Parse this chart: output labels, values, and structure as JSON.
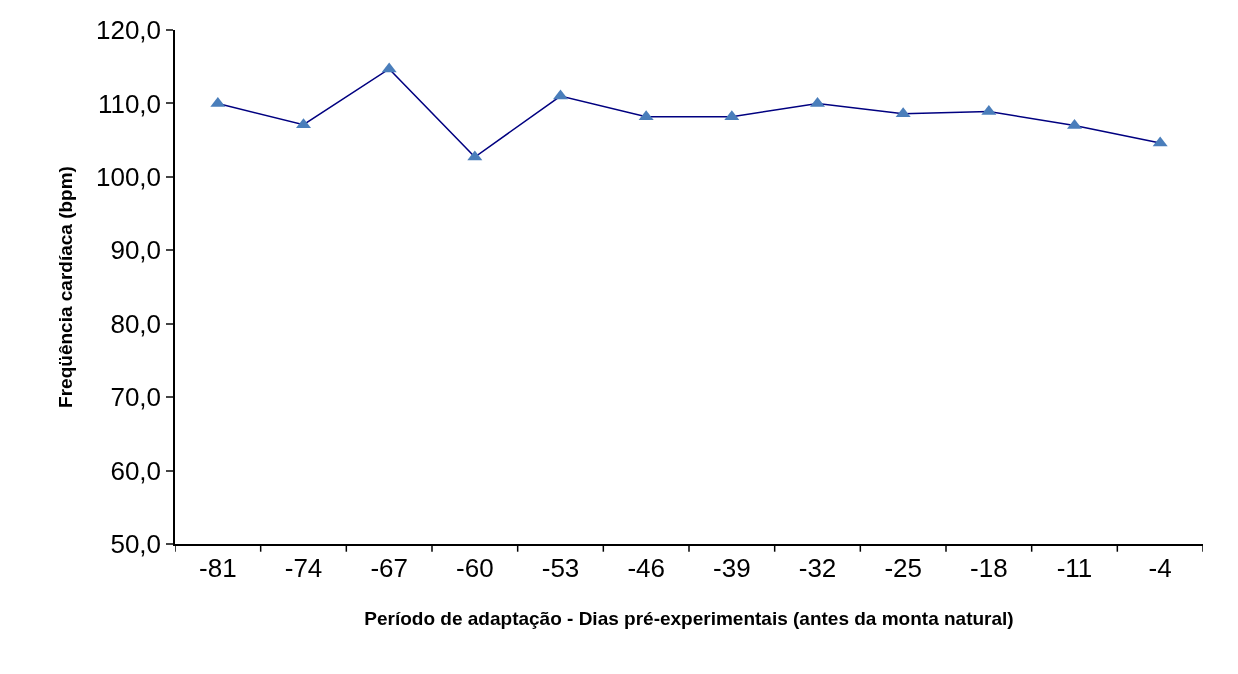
{
  "chart_data": {
    "type": "line",
    "xlabel": "Período de adaptação - Dias pré-experimentais (antes da monta natural)",
    "ylabel": "Freqüência cardíaca (bpm)",
    "categories": [
      "-81",
      "-74",
      "-67",
      "-60",
      "-53",
      "-46",
      "-39",
      "-32",
      "-25",
      "-18",
      "-11",
      "-4"
    ],
    "series": [
      {
        "color": "#4a7ebb",
        "values": [
          110.0,
          107.1,
          114.7,
          102.7,
          111.0,
          108.2,
          108.2,
          110.0,
          108.6,
          108.9,
          107.0,
          104.6
        ]
      }
    ],
    "ylim": [
      50,
      120
    ],
    "yticks": [
      {
        "value": 50,
        "label": "50,0"
      },
      {
        "value": 60,
        "label": "60,0"
      },
      {
        "value": 70,
        "label": "70,0"
      },
      {
        "value": 80,
        "label": "80,0"
      },
      {
        "value": 90,
        "label": "90,0"
      },
      {
        "value": 100,
        "label": "100,0"
      },
      {
        "value": 110,
        "label": "110,0"
      },
      {
        "value": 120,
        "label": "120,0"
      }
    ],
    "grid": false,
    "marker": "triangle",
    "line_style": "solid"
  }
}
